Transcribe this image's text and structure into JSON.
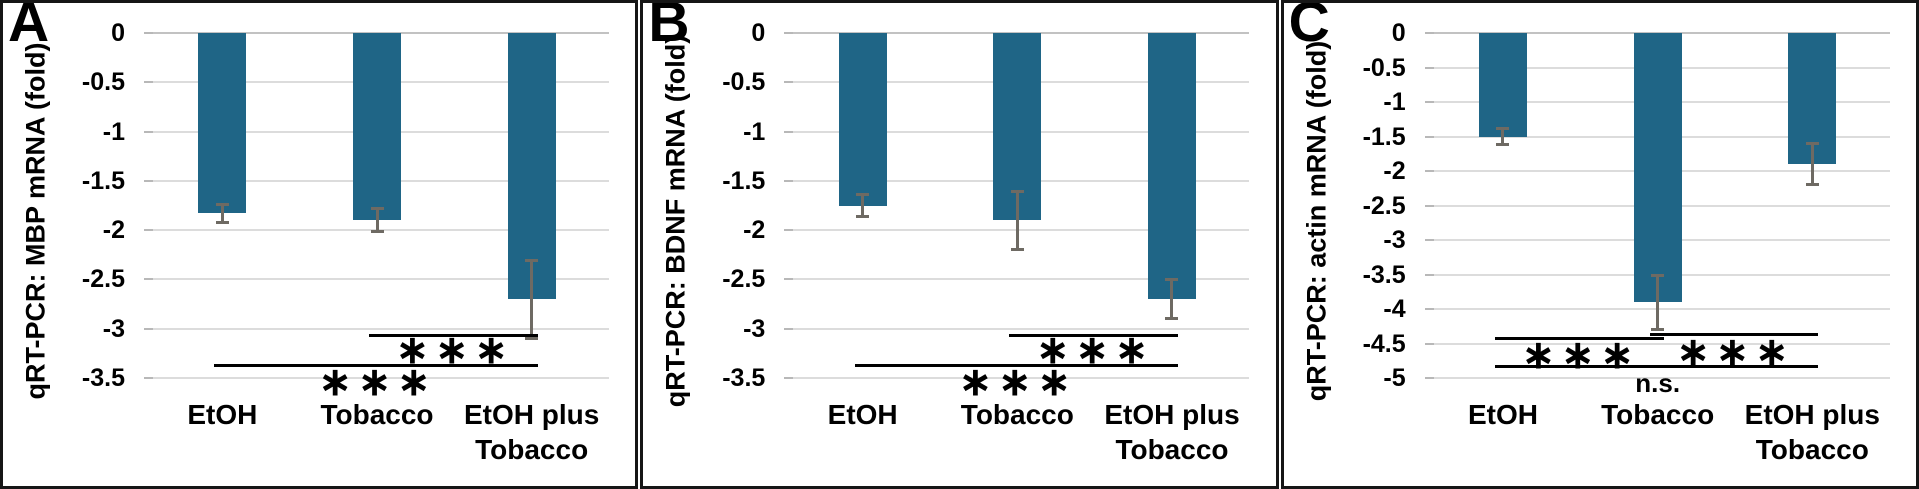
{
  "figure": {
    "description": "Three-panel bar figure of qRT-PCR mRNA fold changes under EtOH, Tobacco, and EtOH plus Tobacco exposure",
    "colors": {
      "bar": "#1f6586",
      "error_bar": "#6e6a63",
      "gridline": "#dcdcdc",
      "zero_line": "#c2c2c2",
      "significance_line": "#000000",
      "text": "#000000",
      "panel_border": "#161616",
      "background": "#ffffff"
    }
  },
  "chart_data": [
    {
      "type": "bar",
      "panel_letter": "A",
      "title": "",
      "xlabel": "",
      "ylabel": "qRT-PCR: MBP mRNA (fold)",
      "categories": [
        "EtOH",
        "Tobacco",
        "EtOH plus Tobacco"
      ],
      "category_display": [
        "EtOH",
        "Tobacco",
        "EtOH plus\nTobacco"
      ],
      "values": [
        -1.83,
        -1.9,
        -2.7
      ],
      "errors": [
        0.1,
        0.12,
        0.4
      ],
      "ylim": [
        0,
        -3.5
      ],
      "yticks": [
        0,
        -0.5,
        -1,
        -1.5,
        -2,
        -2.5,
        -3,
        -3.5
      ],
      "ytick_labels": [
        "0",
        "-0.5",
        "-1",
        "-1.5",
        "-2",
        "-2.5",
        "-3",
        "-3.5"
      ],
      "grid": true,
      "legend": null,
      "significance": [
        {
          "compare": [
            "Tobacco",
            "EtOH plus Tobacco"
          ],
          "between": [
            1,
            2
          ],
          "label": "***",
          "line_y": -3.06,
          "label_y": -3.22
        },
        {
          "compare": [
            "EtOH",
            "EtOH plus Tobacco"
          ],
          "between": [
            0,
            2
          ],
          "label": "***",
          "line_y": -3.37,
          "label_y": -3.54
        }
      ]
    },
    {
      "type": "bar",
      "panel_letter": "B",
      "title": "",
      "xlabel": "",
      "ylabel": "qRT-PCR: BDNF mRNA (fold)",
      "categories": [
        "EtOH",
        "Tobacco",
        "EtOH plus Tobacco"
      ],
      "category_display": [
        "EtOH",
        "Tobacco",
        "EtOH plus\nTobacco"
      ],
      "values": [
        -1.75,
        -1.9,
        -2.7
      ],
      "errors": [
        0.12,
        0.3,
        0.2
      ],
      "ylim": [
        0,
        -3.5
      ],
      "yticks": [
        0,
        -0.5,
        -1,
        -1.5,
        -2,
        -2.5,
        -3,
        -3.5
      ],
      "ytick_labels": [
        "0",
        "-0.5",
        "-1",
        "-1.5",
        "-2",
        "-2.5",
        "-3",
        "-3.5"
      ],
      "grid": true,
      "legend": null,
      "significance": [
        {
          "compare": [
            "Tobacco",
            "EtOH plus Tobacco"
          ],
          "between": [
            1,
            2
          ],
          "label": "***",
          "line_y": -3.06,
          "label_y": -3.22
        },
        {
          "compare": [
            "EtOH",
            "EtOH plus Tobacco"
          ],
          "between": [
            0,
            2
          ],
          "label": "***",
          "line_y": -3.37,
          "label_y": -3.54
        }
      ]
    },
    {
      "type": "bar",
      "panel_letter": "C",
      "title": "",
      "xlabel": "",
      "ylabel": "qRT-PCR: actin mRNA (fold)",
      "categories": [
        "EtOH",
        "Tobacco",
        "EtOH plus Tobacco"
      ],
      "category_display": [
        "EtOH",
        "Tobacco",
        "EtOH plus\nTobacco"
      ],
      "values": [
        -1.5,
        -3.9,
        -1.9
      ],
      "errors": [
        0.13,
        0.4,
        0.3
      ],
      "ylim": [
        0,
        -5
      ],
      "yticks": [
        0,
        -0.5,
        -1,
        -1.5,
        -2,
        -2.5,
        -3,
        -3.5,
        -4,
        -4.5,
        -5
      ],
      "ytick_labels": [
        "0",
        "-0.5",
        "-1",
        "-1.5",
        "-2",
        "-2.5",
        "-3",
        "-3.5",
        "-4",
        "-4.5",
        "-5"
      ],
      "grid": true,
      "legend": null,
      "significance": [
        {
          "compare": [
            "EtOH",
            "Tobacco"
          ],
          "between": [
            0,
            1
          ],
          "label": "***",
          "line_y": -4.42,
          "label_y": -4.66
        },
        {
          "compare": [
            "Tobacco",
            "EtOH plus Tobacco"
          ],
          "between": [
            1,
            2
          ],
          "label": "***",
          "line_y": -4.36,
          "label_y": -4.62
        },
        {
          "compare": [
            "EtOH",
            "EtOH plus Tobacco"
          ],
          "between": [
            0,
            2
          ],
          "label": "n.s.",
          "line_y": -4.82,
          "label_y": -5.07
        }
      ]
    }
  ]
}
